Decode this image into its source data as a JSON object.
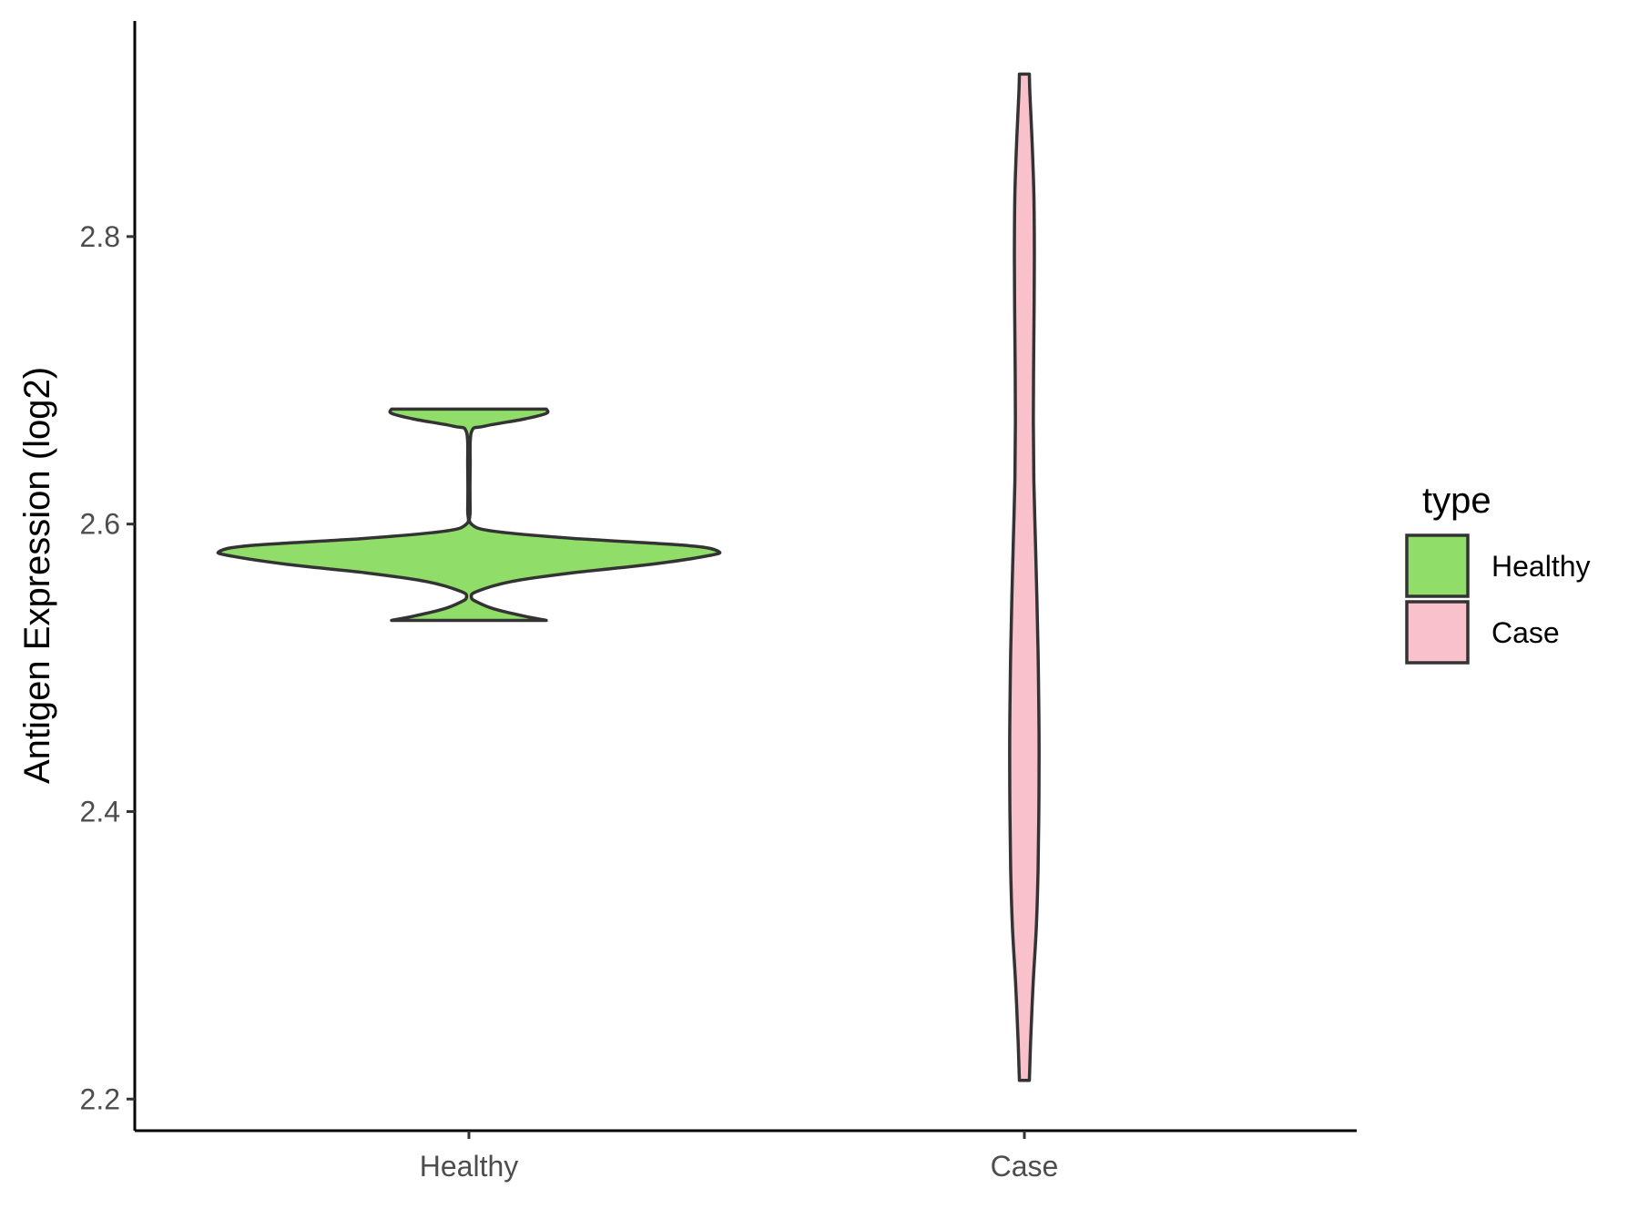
{
  "chart_data": {
    "type": "violin",
    "ylabel": "Antigen Expression (log2)",
    "xlabel": "",
    "categories": [
      "Healthy",
      "Case"
    ],
    "y_ticks": [
      "2.2",
      "2.4",
      "2.6",
      "2.8"
    ],
    "ylim": [
      2.178,
      2.95
    ],
    "legend": {
      "title": "type",
      "position": "right"
    },
    "series": [
      {
        "name": "Healthy",
        "color": "#91dd6a",
        "min": 2.533,
        "max": 2.68,
        "density_profile": [
          [
            2.533,
            0.31
          ],
          [
            2.536,
            0.22
          ],
          [
            2.541,
            0.1
          ],
          [
            2.546,
            0.03
          ],
          [
            2.549,
            0.01
          ],
          [
            2.553,
            0.03
          ],
          [
            2.56,
            0.17
          ],
          [
            2.566,
            0.41
          ],
          [
            2.572,
            0.73
          ],
          [
            2.578,
            0.96
          ],
          [
            2.581,
            1.0
          ],
          [
            2.585,
            0.88
          ],
          [
            2.59,
            0.42
          ],
          [
            2.595,
            0.1
          ],
          [
            2.6,
            0.01
          ],
          [
            2.61,
            0.005
          ],
          [
            2.64,
            0.005
          ],
          [
            2.664,
            0.01
          ],
          [
            2.668,
            0.06
          ],
          [
            2.673,
            0.22
          ],
          [
            2.677,
            0.31
          ],
          [
            2.68,
            0.31
          ]
        ]
      },
      {
        "name": "Case",
        "color": "#f8c1cb",
        "min": 2.213,
        "max": 2.913,
        "density_profile": [
          [
            2.213,
            0.02
          ],
          [
            2.24,
            0.025
          ],
          [
            2.28,
            0.035
          ],
          [
            2.32,
            0.048
          ],
          [
            2.36,
            0.055
          ],
          [
            2.4,
            0.058
          ],
          [
            2.44,
            0.059
          ],
          [
            2.47,
            0.058
          ],
          [
            2.51,
            0.055
          ],
          [
            2.55,
            0.05
          ],
          [
            2.59,
            0.044
          ],
          [
            2.63,
            0.038
          ],
          [
            2.67,
            0.036
          ],
          [
            2.71,
            0.037
          ],
          [
            2.75,
            0.039
          ],
          [
            2.79,
            0.04
          ],
          [
            2.83,
            0.038
          ],
          [
            2.87,
            0.03
          ],
          [
            2.9,
            0.022
          ],
          [
            2.913,
            0.02
          ]
        ]
      }
    ]
  }
}
